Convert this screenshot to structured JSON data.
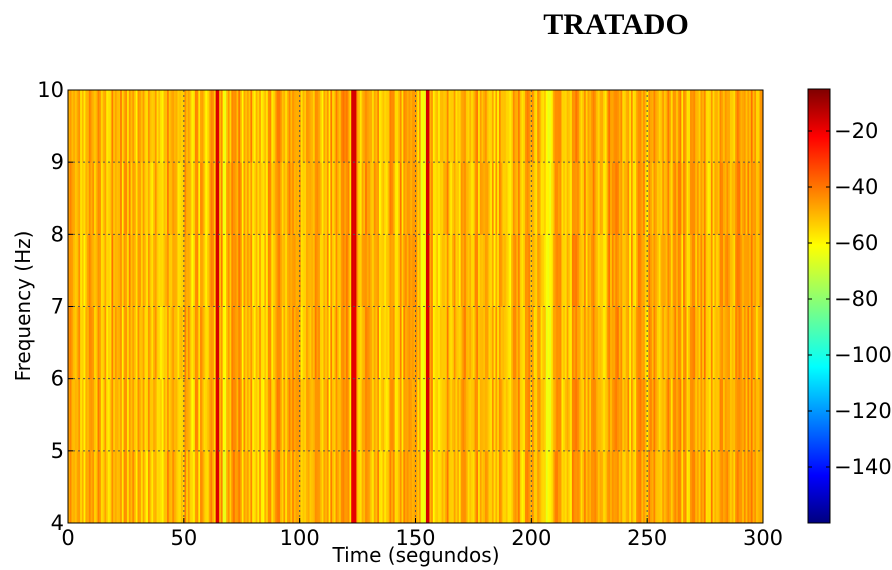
{
  "chart_data": {
    "type": "heatmap",
    "title": "TRATADO",
    "xlabel": "Time (segundos)",
    "ylabel": "Frequency (Hz)",
    "xlim": [
      0,
      300
    ],
    "ylim": [
      4,
      10
    ],
    "x_ticks": [
      "0",
      "50",
      "100",
      "150",
      "200",
      "250",
      "300"
    ],
    "y_ticks": [
      "4",
      "5",
      "6",
      "7",
      "8",
      "9",
      "10"
    ],
    "grid": true,
    "colormap": "jet",
    "colorbar": {
      "range": [
        -160,
        -5
      ],
      "ticks": [
        "−20",
        "−40",
        "−60",
        "−80",
        "−100",
        "−120",
        "−140"
      ]
    },
    "value_range_observed": [
      -70,
      -20
    ],
    "strong_streaks_x": [
      64,
      123,
      155
    ],
    "weak_streaks_x": [
      67,
      153,
      207
    ]
  }
}
